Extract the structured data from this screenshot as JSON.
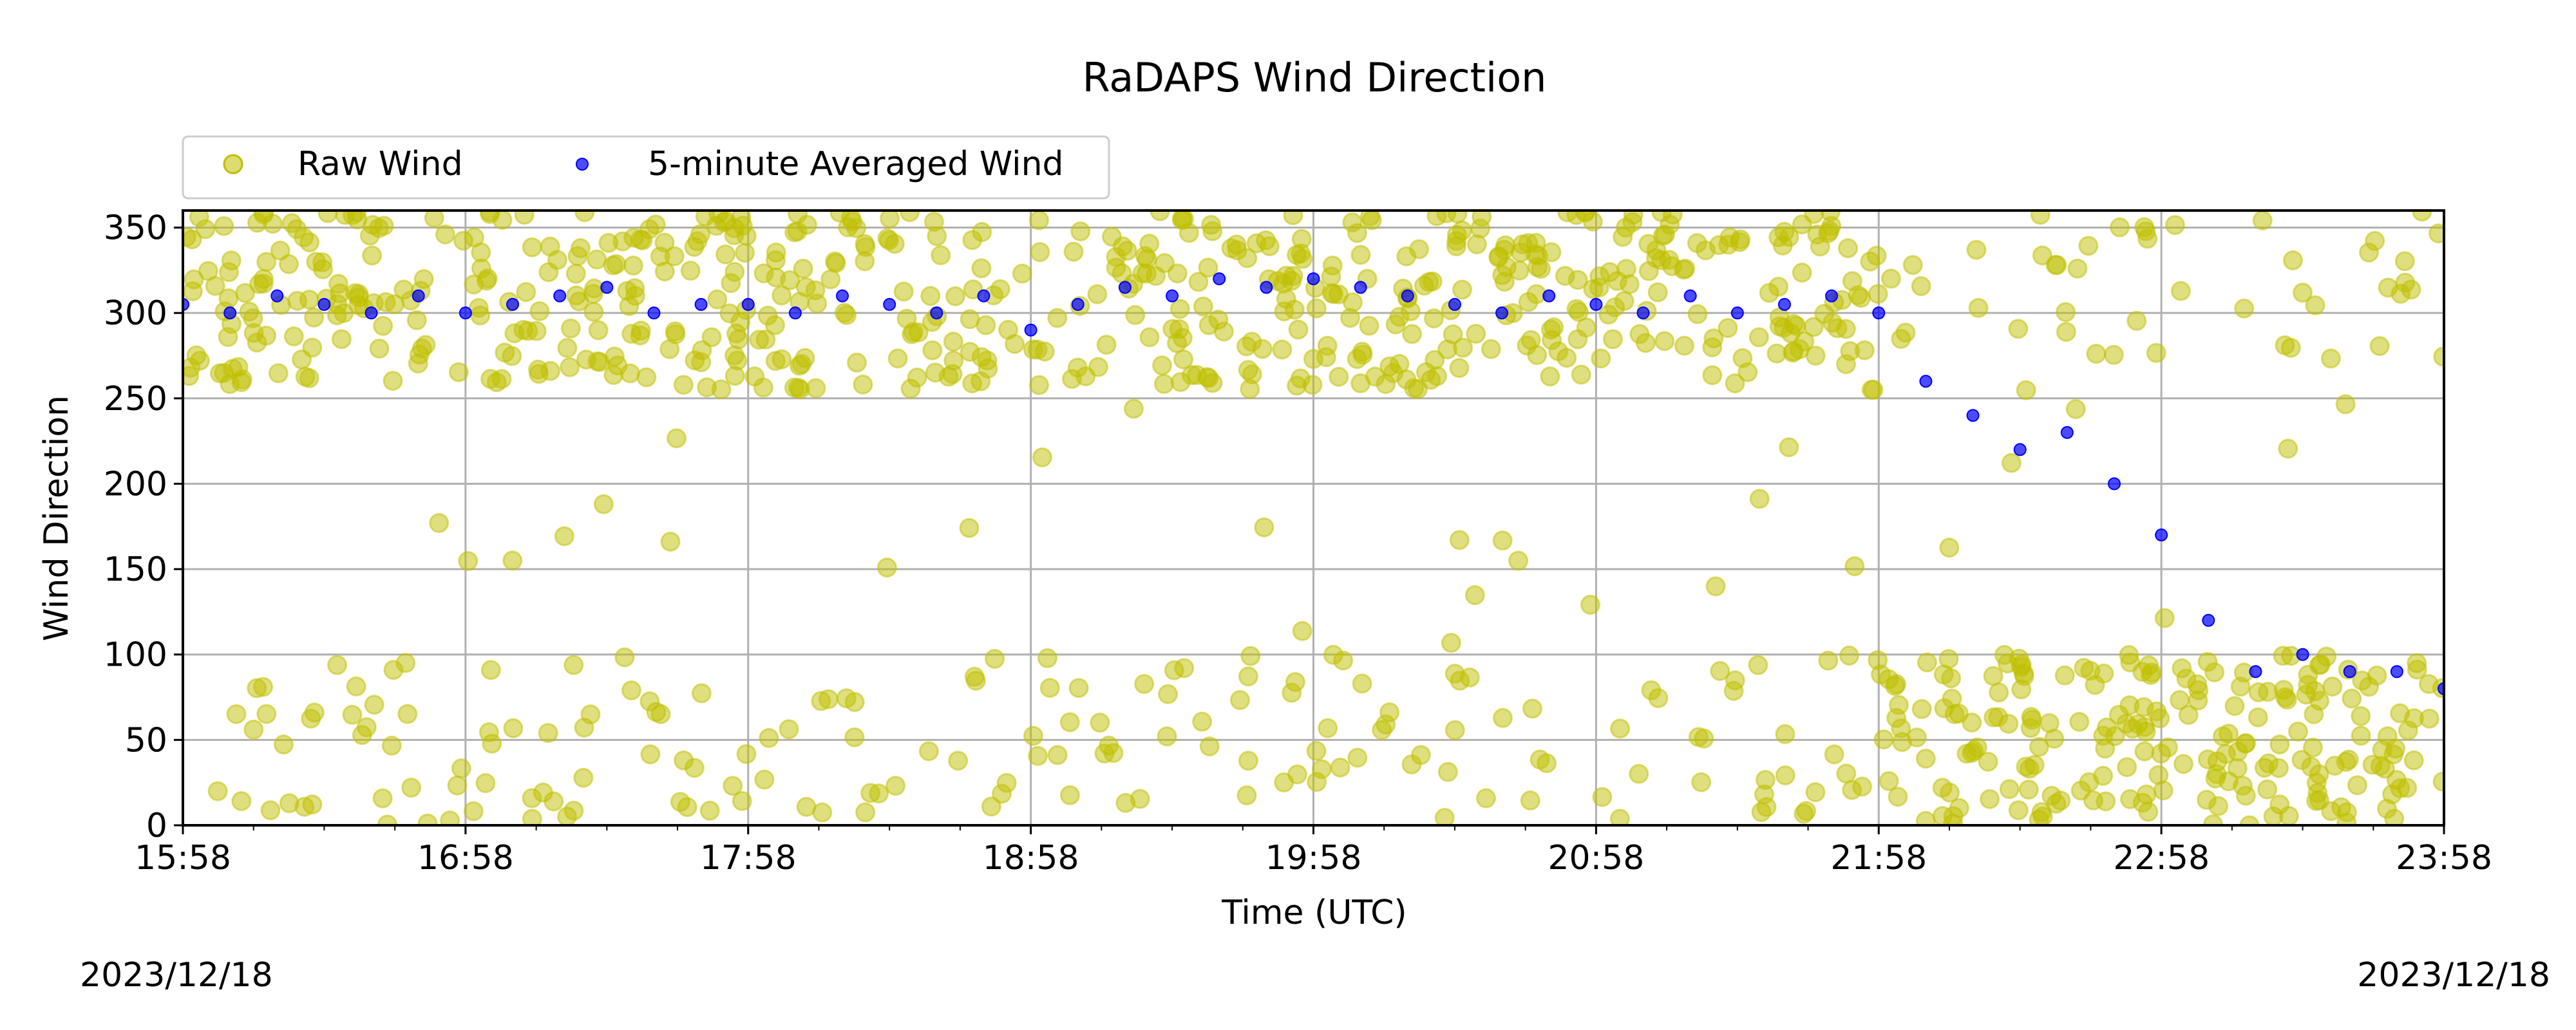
{
  "chart_data": {
    "type": "scatter",
    "title": "RaDAPS Wind Direction",
    "xlabel": "Time (UTC)",
    "ylabel": "Wind Direction",
    "xlim": [
      "15:58",
      "23:58"
    ],
    "ylim": [
      0,
      360
    ],
    "grid": true,
    "legend_position": "top-left",
    "x_ticks": [
      "15:58",
      "16:58",
      "17:58",
      "18:58",
      "19:58",
      "20:58",
      "21:58",
      "22:58",
      "23:58"
    ],
    "y_ticks": [
      0,
      50,
      100,
      150,
      200,
      250,
      300,
      350
    ],
    "date_left": "2023/12/18",
    "date_right": "2023/12/18",
    "series": [
      {
        "name": "Raw Wind",
        "color": "#bfbf00",
        "marker": "circle",
        "alpha": 0.5,
        "description_bands": [
          {
            "x_range": [
              "15:58",
              "21:58"
            ],
            "main_y_range": [
              255,
              360
            ],
            "secondary_y_range": [
              0,
              100
            ],
            "scattered": true
          },
          {
            "x_range": [
              "21:58",
              "23:58"
            ],
            "main_y_range": [
              0,
              100
            ],
            "secondary_y_range": [
              270,
              360
            ],
            "scattered": true
          }
        ]
      },
      {
        "name": "5-minute Averaged Wind",
        "color": "#0000ff",
        "marker": "point",
        "alpha": 0.7,
        "x": [
          "15:58",
          "16:08",
          "16:18",
          "16:28",
          "16:38",
          "16:48",
          "16:58",
          "17:08",
          "17:18",
          "17:28",
          "17:38",
          "17:48",
          "17:58",
          "18:08",
          "18:18",
          "18:28",
          "18:38",
          "18:48",
          "18:58",
          "19:08",
          "19:18",
          "19:28",
          "19:38",
          "19:48",
          "19:58",
          "20:08",
          "20:18",
          "20:28",
          "20:38",
          "20:48",
          "20:58",
          "21:08",
          "21:18",
          "21:28",
          "21:38",
          "21:48",
          "21:58",
          "22:08",
          "22:18",
          "22:28",
          "22:38",
          "22:48",
          "22:58",
          "23:08",
          "23:18",
          "23:28",
          "23:38",
          "23:48",
          "23:58"
        ],
        "y": [
          305,
          300,
          310,
          305,
          300,
          310,
          300,
          305,
          310,
          315,
          300,
          305,
          305,
          300,
          310,
          305,
          300,
          310,
          290,
          305,
          315,
          310,
          320,
          315,
          320,
          315,
          310,
          305,
          300,
          310,
          305,
          300,
          310,
          300,
          305,
          310,
          300,
          260,
          240,
          220,
          230,
          200,
          170,
          120,
          90,
          100,
          90,
          90,
          80
        ]
      }
    ]
  }
}
